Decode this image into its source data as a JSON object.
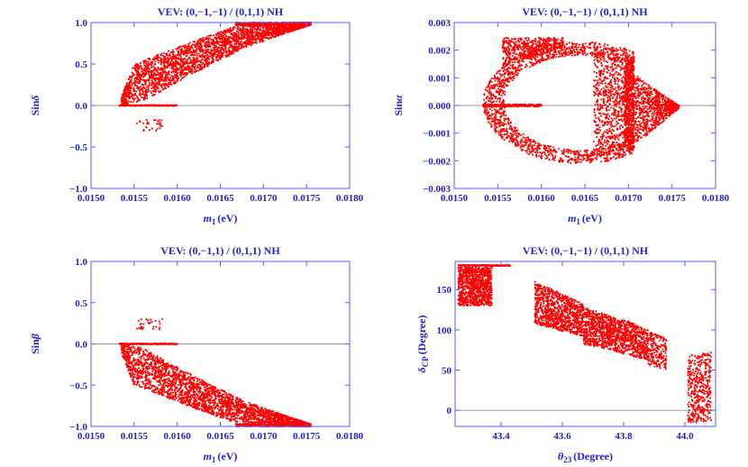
{
  "colors": {
    "axis": "#1f1fcf",
    "frame": "#5a5aff",
    "points": "#ff0000",
    "zero_line": "#777777"
  },
  "chart_data": [
    {
      "id": "sin-delta",
      "type": "scatter",
      "title": "VEV: (0,−1,−1) / (0,1,1) NH",
      "xlabel_main": "m",
      "xlabel_sub": "1",
      "xlabel_tail": "(eV)",
      "ylabel_main": "Sin",
      "ylabel_greek": "δ",
      "xlim": [
        0.015,
        0.018
      ],
      "ylim": [
        -1.0,
        1.0
      ],
      "xticks": [
        0.015,
        0.0155,
        0.016,
        0.0165,
        0.017,
        0.0175,
        0.018
      ],
      "xtick_labels": [
        "0.0150",
        "0.0155",
        "0.0160",
        "0.0165",
        "0.0170",
        "0.0175",
        "0.0180"
      ],
      "yticks": [
        -1.0,
        -0.5,
        0.0,
        0.5,
        1.0
      ],
      "ytick_labels": [
        "−1.0",
        "−0.5",
        "0.0",
        "0.5",
        "1.0"
      ],
      "zero_line": 0.0,
      "point_regions": [
        {
          "kind": "band",
          "x": [
            0.01535,
            0.01755
          ],
          "upper": [
            [
              0.01535,
              0.1
            ],
            [
              0.0155,
              0.5
            ],
            [
              0.0158,
              0.62
            ],
            [
              0.0162,
              0.78
            ],
            [
              0.0166,
              0.93
            ],
            [
              0.0168,
              1.0
            ],
            [
              0.01755,
              1.0
            ]
          ],
          "lower": [
            [
              0.01535,
              0.0
            ],
            [
              0.0156,
              0.05
            ],
            [
              0.016,
              0.28
            ],
            [
              0.0164,
              0.5
            ],
            [
              0.0168,
              0.7
            ],
            [
              0.0172,
              0.85
            ],
            [
              0.01755,
              0.97
            ]
          ],
          "n": 2600
        },
        {
          "kind": "band",
          "x": [
            0.01668,
            0.01755
          ],
          "upper": [
            [
              0.01668,
              1.0
            ],
            [
              0.01755,
              1.0
            ]
          ],
          "lower": [
            [
              0.01668,
              0.965
            ],
            [
              0.01755,
              0.985
            ]
          ],
          "n": 500
        },
        {
          "kind": "band",
          "x": [
            0.01533,
            0.016
          ],
          "upper": [
            [
              0.01533,
              0.004
            ],
            [
              0.016,
              0.004
            ]
          ],
          "lower": [
            [
              0.01533,
              -0.004
            ],
            [
              0.016,
              -0.004
            ]
          ],
          "n": 260
        },
        {
          "kind": "cloud",
          "x": [
            0.01553,
            0.01583
          ],
          "y": [
            -0.31,
            -0.17
          ],
          "n": 30
        }
      ]
    },
    {
      "id": "sin-alpha",
      "type": "scatter",
      "title": "VEV: (0,−1,−1) / (0,1,1) NH",
      "xlabel_main": "m",
      "xlabel_sub": "1",
      "xlabel_tail": "(eV)",
      "ylabel_main": "Sin",
      "ylabel_greek": "α",
      "xlim": [
        0.015,
        0.018
      ],
      "ylim": [
        -0.003,
        0.003
      ],
      "xticks": [
        0.015,
        0.0155,
        0.016,
        0.0165,
        0.017,
        0.0175,
        0.018
      ],
      "xtick_labels": [
        "0.0150",
        "0.0155",
        "0.0160",
        "0.0165",
        "0.0170",
        "0.0175",
        "0.0180"
      ],
      "yticks": [
        -0.003,
        -0.002,
        -0.001,
        0.0,
        0.001,
        0.002,
        0.003
      ],
      "ytick_labels": [
        "−0.003",
        "−0.002",
        "−0.001",
        "0.000",
        "0.001",
        "0.002",
        "0.003"
      ],
      "zero_line": 0.0,
      "point_regions": [
        {
          "kind": "ring",
          "cx": 0.01645,
          "cy": 0.0001,
          "rx": 0.00112,
          "ry": 0.0022,
          "thick": 0.22,
          "n": 1900
        },
        {
          "kind": "band",
          "x": [
            0.0166,
            0.01758
          ],
          "upper": [
            [
              0.0166,
              0.0021
            ],
            [
              0.0169,
              0.0016
            ],
            [
              0.0172,
              0.0008
            ],
            [
              0.01758,
              0.0
            ]
          ],
          "lower": [
            [
              0.0166,
              -0.0019
            ],
            [
              0.0169,
              -0.0017
            ],
            [
              0.0172,
              -0.0011
            ],
            [
              0.01758,
              -0.0001
            ]
          ],
          "n": 1600
        },
        {
          "kind": "band",
          "x": [
            0.01555,
            0.01625
          ],
          "upper": [
            [
              0.01555,
              0.00245
            ],
            [
              0.01625,
              0.00245
            ]
          ],
          "lower": [
            [
              0.01555,
              0.0014
            ],
            [
              0.01625,
              0.0021
            ]
          ],
          "n": 500
        },
        {
          "kind": "band",
          "x": [
            0.01533,
            0.016
          ],
          "upper": [
            [
              0.01533,
              4e-05
            ],
            [
              0.016,
              4e-05
            ]
          ],
          "lower": [
            [
              0.01533,
              -4e-05
            ],
            [
              0.016,
              -4e-05
            ]
          ],
          "n": 260
        }
      ]
    },
    {
      "id": "sin-beta",
      "type": "scatter",
      "title": "VEV: (0,−1,1) / (0,1,1) NH",
      "xlabel_main": "m",
      "xlabel_sub": "1",
      "xlabel_tail": "(eV)",
      "ylabel_main": "Sin",
      "ylabel_greek": "β",
      "xlim": [
        0.015,
        0.018
      ],
      "ylim": [
        -1.0,
        1.0
      ],
      "xticks": [
        0.015,
        0.0155,
        0.016,
        0.0165,
        0.017,
        0.0175,
        0.018
      ],
      "xtick_labels": [
        "0.0150",
        "0.0155",
        "0.0160",
        "0.0165",
        "0.0170",
        "0.0175",
        "0.0180"
      ],
      "yticks": [
        -1.0,
        -0.5,
        0.0,
        0.5,
        1.0
      ],
      "ytick_labels": [
        "−1.0",
        "−0.5",
        "0.0",
        "0.5",
        "1.0"
      ],
      "zero_line": 0.0,
      "point_regions": [
        {
          "kind": "band",
          "x": [
            0.01535,
            0.01755
          ],
          "upper": [
            [
              0.01535,
              0.0
            ],
            [
              0.0156,
              -0.05
            ],
            [
              0.016,
              -0.28
            ],
            [
              0.0164,
              -0.5
            ],
            [
              0.0168,
              -0.7
            ],
            [
              0.0172,
              -0.85
            ],
            [
              0.01755,
              -0.97
            ]
          ],
          "lower": [
            [
              0.01535,
              -0.1
            ],
            [
              0.0155,
              -0.5
            ],
            [
              0.0158,
              -0.62
            ],
            [
              0.0162,
              -0.78
            ],
            [
              0.0166,
              -0.93
            ],
            [
              0.0168,
              -1.0
            ],
            [
              0.01755,
              -1.0
            ]
          ],
          "n": 2600
        },
        {
          "kind": "band",
          "x": [
            0.01668,
            0.01755
          ],
          "upper": [
            [
              0.01668,
              -0.965
            ],
            [
              0.01755,
              -0.985
            ]
          ],
          "lower": [
            [
              0.01668,
              -1.0
            ],
            [
              0.01755,
              -1.0
            ]
          ],
          "n": 500
        },
        {
          "kind": "band",
          "x": [
            0.01533,
            0.016
          ],
          "upper": [
            [
              0.01533,
              0.004
            ],
            [
              0.016,
              0.004
            ]
          ],
          "lower": [
            [
              0.01533,
              -0.004
            ],
            [
              0.016,
              -0.004
            ]
          ],
          "n": 260
        },
        {
          "kind": "cloud",
          "x": [
            0.01553,
            0.01583
          ],
          "y": [
            0.17,
            0.31
          ],
          "n": 30
        }
      ]
    },
    {
      "id": "delta-cp",
      "type": "scatter",
      "title": "VEV: (0,−1,−1) / (0,1,1) NH",
      "xlabel_main": "θ",
      "xlabel_sub": "23",
      "xlabel_tail": "(Degree)",
      "ylabel_main": "δ",
      "ylabel_sub": "CP",
      "ylabel_tail": "(Degree)",
      "xlim": [
        43.25,
        44.1
      ],
      "ylim": [
        -20,
        185
      ],
      "xticks": [
        43.4,
        43.6,
        43.8,
        44.0
      ],
      "xtick_labels": [
        "43.4",
        "43.6",
        "43.8",
        "44.0"
      ],
      "yticks": [
        0,
        50,
        100,
        150
      ],
      "ytick_labels": [
        "0",
        "50",
        "100",
        "150"
      ],
      "zero_line": 0,
      "point_regions": [
        {
          "kind": "cloud",
          "x": [
            43.26,
            43.37
          ],
          "y": [
            130,
            178
          ],
          "n": 900
        },
        {
          "kind": "band",
          "x": [
            43.26,
            43.43
          ],
          "upper": [
            [
              43.26,
              180.6
            ],
            [
              43.43,
              180.6
            ]
          ],
          "lower": [
            [
              43.26,
              179.4
            ],
            [
              43.43,
              179.4
            ]
          ],
          "n": 160
        },
        {
          "kind": "band",
          "x": [
            43.51,
            43.67
          ],
          "upper": [
            [
              43.51,
              160
            ],
            [
              43.58,
              148
            ],
            [
              43.67,
              132
            ]
          ],
          "lower": [
            [
              43.51,
              108
            ],
            [
              43.58,
              100
            ],
            [
              43.67,
              92
            ]
          ],
          "n": 900
        },
        {
          "kind": "band",
          "x": [
            43.67,
            43.88
          ],
          "upper": [
            [
              43.67,
              128
            ],
            [
              43.75,
              118
            ],
            [
              43.82,
              110
            ],
            [
              43.88,
              100
            ]
          ],
          "lower": [
            [
              43.67,
              82
            ],
            [
              43.75,
              76
            ],
            [
              43.82,
              68
            ],
            [
              43.88,
              62
            ]
          ],
          "n": 1200
        },
        {
          "kind": "band",
          "x": [
            43.88,
            43.94
          ],
          "upper": [
            [
              43.88,
              98
            ],
            [
              43.94,
              90
            ]
          ],
          "lower": [
            [
              43.88,
              55
            ],
            [
              43.94,
              50
            ]
          ],
          "n": 180
        },
        {
          "kind": "band",
          "x": [
            44.01,
            44.085
          ],
          "upper": [
            [
              44.01,
              68
            ],
            [
              44.085,
              72
            ]
          ],
          "lower": [
            [
              44.01,
              -15
            ],
            [
              44.085,
              -15
            ]
          ],
          "n": 420
        }
      ]
    }
  ]
}
